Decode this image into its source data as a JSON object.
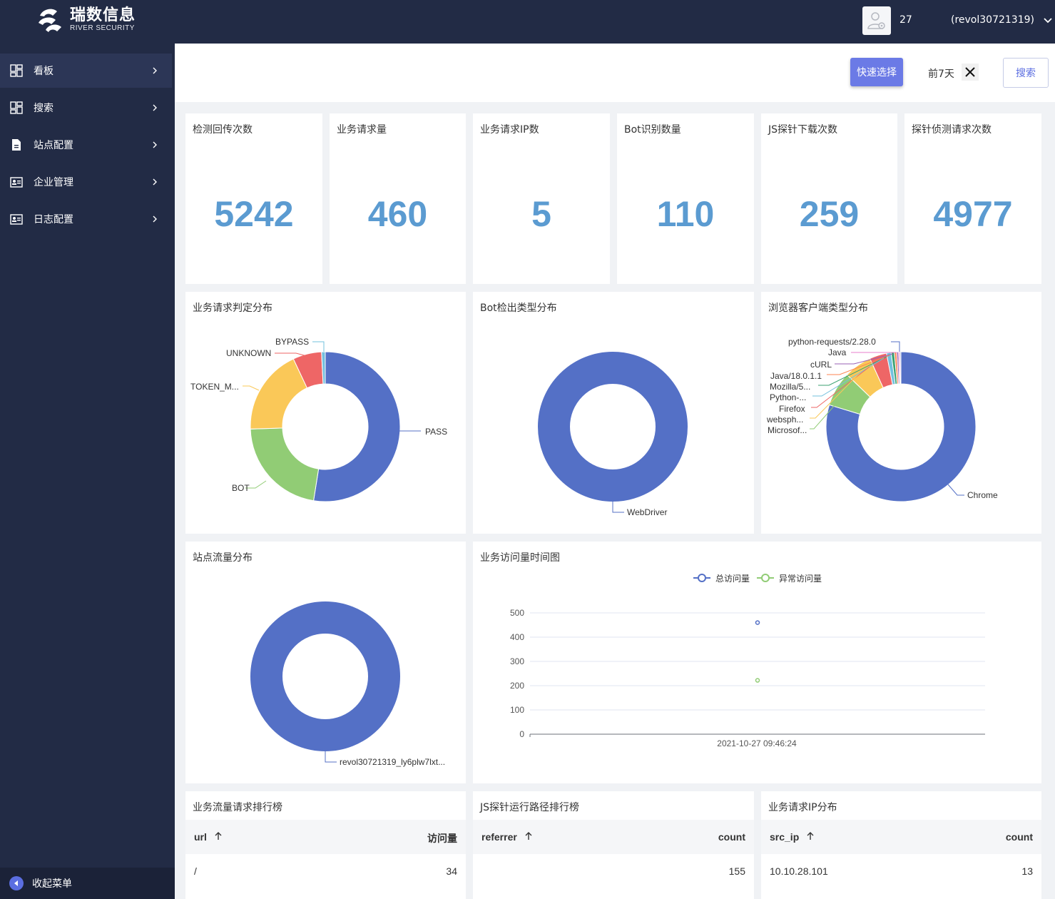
{
  "header": {
    "brand_cn": "瑞数信息",
    "brand_en": "RIVER SECURITY",
    "user_id": "27",
    "user_name": "(revol30721319)"
  },
  "sidebar": {
    "items": [
      {
        "label": "看板",
        "icon": "dashboard-icon",
        "active": true
      },
      {
        "label": "搜索",
        "icon": "dashboard-icon"
      },
      {
        "label": "站点配置",
        "icon": "document-icon"
      },
      {
        "label": "企业管理",
        "icon": "id-card-icon"
      },
      {
        "label": "日志配置",
        "icon": "id-card-icon"
      }
    ],
    "collapse_label": "收起菜单"
  },
  "toolbar": {
    "quick_select": "快速选择",
    "range": "前7天",
    "search": "搜索"
  },
  "stats": [
    {
      "title": "检测回传次数",
      "value": "5242"
    },
    {
      "title": "业务请求量",
      "value": "460"
    },
    {
      "title": "业务请求IP数",
      "value": "5"
    },
    {
      "title": "Bot识别数量",
      "value": "110"
    },
    {
      "title": "JS探针下载次数",
      "value": "259"
    },
    {
      "title": "探针侦测请求次数",
      "value": "4977"
    }
  ],
  "pies": {
    "decision": {
      "title": "业务请求判定分布",
      "labels": [
        "PASS",
        "BOT",
        "TOKEN_M...",
        "UNKNOWN",
        "BYPASS"
      ]
    },
    "bot_type": {
      "title": "Bot检出类型分布",
      "labels": [
        "WebDriver"
      ]
    },
    "browser": {
      "title": "浏览器客户端类型分布",
      "labels": [
        "Chrome",
        "python-requests/2.28.0",
        "Java",
        "cURL",
        "Java/18.0.1.1",
        "Mozilla/5...",
        "Python-...",
        "Firefox",
        "websph...",
        "Microsof..."
      ]
    },
    "site": {
      "title": "站点流量分布",
      "labels": [
        "revol30721319_ly6plw7lxt..."
      ]
    }
  },
  "chart_data": [
    {
      "type": "pie",
      "title": "业务请求判定分布",
      "categories": [
        "PASS",
        "BOT",
        "TOKEN_M...",
        "UNKNOWN",
        "BYPASS"
      ],
      "values": [
        52.5,
        22,
        18.5,
        6.2,
        0.8
      ],
      "colors": [
        "#5470c6",
        "#91cc75",
        "#fac858",
        "#ee6666",
        "#73c0de"
      ]
    },
    {
      "type": "pie",
      "title": "Bot检出类型分布",
      "categories": [
        "WebDriver"
      ],
      "values": [
        100
      ],
      "colors": [
        "#5470c6"
      ]
    },
    {
      "type": "pie",
      "title": "浏览器客户端类型分布",
      "categories": [
        "Chrome",
        "Firefox",
        "Microsof...",
        "websph...",
        "Python-...",
        "Mozilla/5...",
        "Java/18.0.1.1",
        "cURL",
        "Java",
        "python-requests/2.28.0"
      ],
      "values": [
        79.7,
        7.5,
        6.0,
        3.7,
        1.0,
        0.7,
        0.5,
        0.4,
        0.3,
        0.2
      ],
      "colors": [
        "#5470c6",
        "#91cc75",
        "#fac858",
        "#ee6666",
        "#73c0de",
        "#3ba272",
        "#fc8452",
        "#9a60b4",
        "#ea7ccc",
        "#5470c6"
      ]
    },
    {
      "type": "pie",
      "title": "站点流量分布",
      "categories": [
        "revol30721319_ly6plw7lxt..."
      ],
      "values": [
        100
      ],
      "colors": [
        "#5470c6"
      ]
    },
    {
      "type": "scatter",
      "title": "业务访问量时间图",
      "x": [
        "2021-10-27 09:46:24"
      ],
      "series": [
        {
          "name": "总访问量",
          "values": [
            460
          ],
          "color": "#5470c6"
        },
        {
          "name": "异常访问量",
          "values": [
            222
          ],
          "color": "#91cc75"
        }
      ],
      "ylim": [
        0,
        500
      ],
      "yticks": [
        0,
        100,
        200,
        300,
        400,
        500
      ]
    }
  ],
  "timeline": {
    "title": "业务访问量时间图",
    "legend": [
      "总访问量",
      "异常访问量"
    ],
    "x_label": "2021-10-27 09:46:24",
    "yticks": [
      "0",
      "100",
      "200",
      "300",
      "400",
      "500"
    ]
  },
  "tables": [
    {
      "title": "业务流量请求排行榜",
      "col1": "url",
      "col2": "访问量",
      "row": [
        "/",
        "34"
      ]
    },
    {
      "title": "JS探针运行路径排行榜",
      "col1": "referrer",
      "col2": "count",
      "row": [
        "",
        "155"
      ]
    },
    {
      "title": "业务请求IP分布",
      "col1": "src_ip",
      "col2": "count",
      "row": [
        "10.10.28.101",
        "13"
      ]
    }
  ]
}
